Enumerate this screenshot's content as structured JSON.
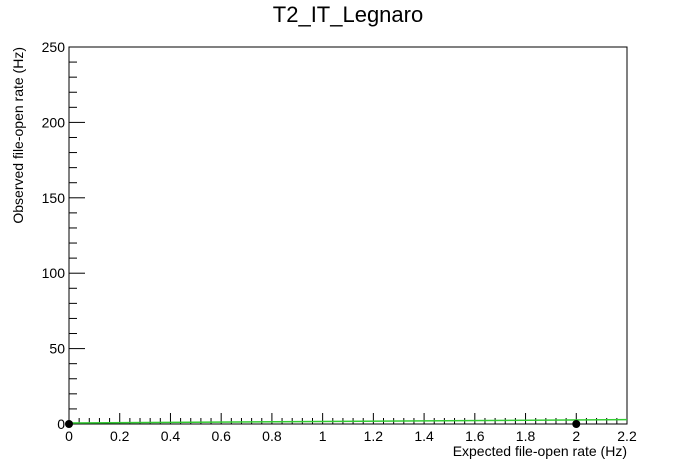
{
  "chart_data": {
    "type": "scatter",
    "title": "T2_IT_Legnaro",
    "xlabel": "Expected file-open rate (Hz)",
    "ylabel": "Observed file-open rate (Hz)",
    "xlim": [
      0,
      2.2
    ],
    "ylim": [
      0,
      250
    ],
    "x_ticks": [
      "0",
      "0.2",
      "0.4",
      "0.6",
      "0.8",
      "1",
      "1.2",
      "1.4",
      "1.6",
      "1.8",
      "2",
      "2.2"
    ],
    "y_ticks": [
      "0",
      "50",
      "100",
      "150",
      "200",
      "250"
    ],
    "grid": false,
    "colors": {
      "points": "#000000",
      "line": "#33cc33",
      "axes": "#000000"
    },
    "series": [
      {
        "kind": "points",
        "x": [
          0,
          2
        ],
        "y": [
          0,
          0
        ]
      },
      {
        "kind": "line",
        "x": [
          0,
          2.2
        ],
        "y": [
          0,
          2.2
        ]
      }
    ]
  }
}
